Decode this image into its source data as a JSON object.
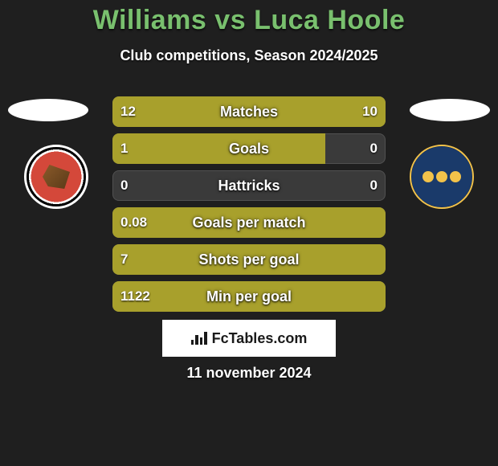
{
  "background_color": "#1f1f1f",
  "title": {
    "player_a": "Williams",
    "vs": "vs",
    "player_b": "Luca Hoole",
    "color": "#79c06e",
    "fontsize": 34
  },
  "subtitle": "Club competitions, Season 2024/2025",
  "colors": {
    "player_a_bar": "#a8a02c",
    "player_b_bar": "#a8a02c",
    "empty_bar": "#3a3a3a",
    "text": "#ffffff",
    "branding_bg": "#ffffff",
    "branding_text": "#1a1a1a"
  },
  "stats": [
    {
      "label": "Matches",
      "a": "12",
      "b": "10",
      "a_pct": 55,
      "b_pct": 45
    },
    {
      "label": "Goals",
      "a": "1",
      "b": "0",
      "a_pct": 78,
      "b_pct": 0
    },
    {
      "label": "Hattricks",
      "a": "0",
      "b": "0",
      "a_pct": 0,
      "b_pct": 0
    },
    {
      "label": "Goals per match",
      "a": "0.08",
      "b": "",
      "a_pct": 100,
      "b_pct": 0
    },
    {
      "label": "Shots per goal",
      "a": "7",
      "b": "",
      "a_pct": 100,
      "b_pct": 0
    },
    {
      "label": "Min per goal",
      "a": "1122",
      "b": "",
      "a_pct": 100,
      "b_pct": 0
    }
  ],
  "stat_bar": {
    "height": 38,
    "gap": 8,
    "border_radius": 8,
    "label_fontsize": 18,
    "value_fontsize": 17
  },
  "branding": "FcTables.com",
  "date": "11 november 2024",
  "clubs": {
    "a": "Walsall FC",
    "b": "Shrewsbury Town"
  }
}
